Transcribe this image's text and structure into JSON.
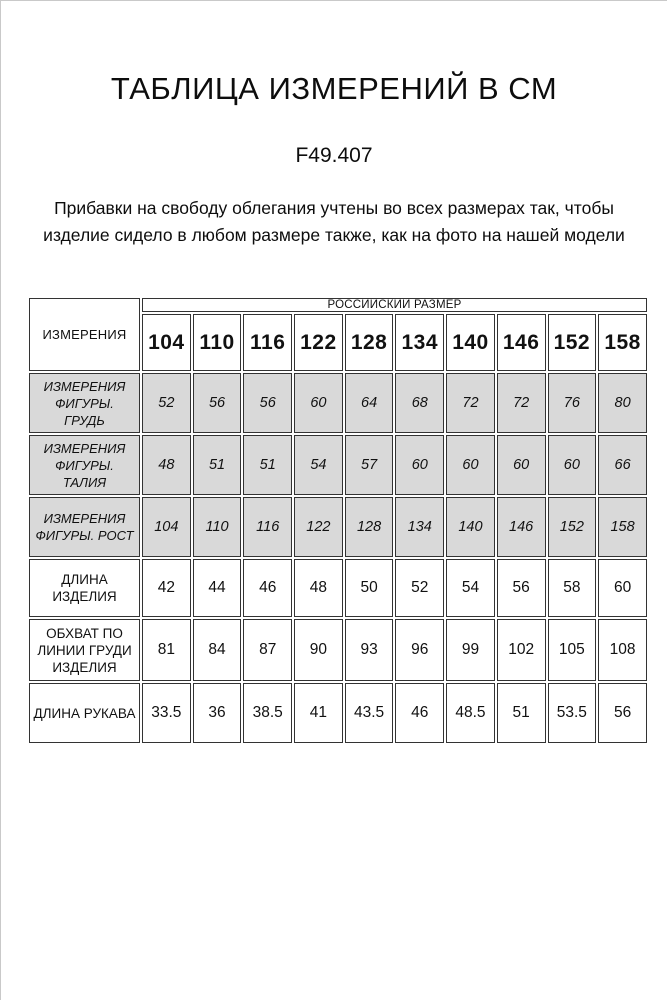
{
  "page": {
    "title": "ТАБЛИЦА ИЗМЕРЕНИЙ В СМ",
    "product_code": "F49.407",
    "note": "Прибавки на свободу облегания учтены во всех размерах так, чтобы изделие сидело в любом размере также, как на фото на нашей модели"
  },
  "table": {
    "corner_header": "ИЗМЕРЕНИЯ",
    "group_header": "РОССИЙСКИЙ РАЗМЕР",
    "sizes": [
      "104",
      "110",
      "116",
      "122",
      "128",
      "134",
      "140",
      "146",
      "152",
      "158"
    ],
    "rows": [
      {
        "label": "ИЗМЕРЕНИЯ ФИГУРЫ. ГРУДЬ",
        "style": "figure",
        "values": [
          "52",
          "56",
          "56",
          "60",
          "64",
          "68",
          "72",
          "72",
          "76",
          "80"
        ]
      },
      {
        "label": "ИЗМЕРЕНИЯ ФИГУРЫ. ТАЛИЯ",
        "style": "figure",
        "values": [
          "48",
          "51",
          "51",
          "54",
          "57",
          "60",
          "60",
          "60",
          "60",
          "66"
        ]
      },
      {
        "label": "ИЗМЕРЕНИЯ ФИГУРЫ. РОСТ",
        "style": "figure",
        "values": [
          "104",
          "110",
          "116",
          "122",
          "128",
          "134",
          "140",
          "146",
          "152",
          "158"
        ]
      },
      {
        "label": "ДЛИНА ИЗДЕЛИЯ",
        "style": "product",
        "values": [
          "42",
          "44",
          "46",
          "48",
          "50",
          "52",
          "54",
          "56",
          "58",
          "60"
        ]
      },
      {
        "label": "ОБХВАТ ПО ЛИНИИ ГРУДИ ИЗДЕЛИЯ",
        "style": "product",
        "values": [
          "81",
          "84",
          "87",
          "90",
          "93",
          "96",
          "99",
          "102",
          "105",
          "108"
        ]
      },
      {
        "label": "ДЛИНА РУКАВА",
        "style": "product",
        "values": [
          "33.5",
          "36",
          "38.5",
          "41",
          "43.5",
          "46",
          "48.5",
          "51",
          "53.5",
          "56"
        ]
      }
    ],
    "colors": {
      "shaded_row_bg": "#d9d9d9",
      "cell_border": "#333333",
      "text": "#111111"
    }
  }
}
